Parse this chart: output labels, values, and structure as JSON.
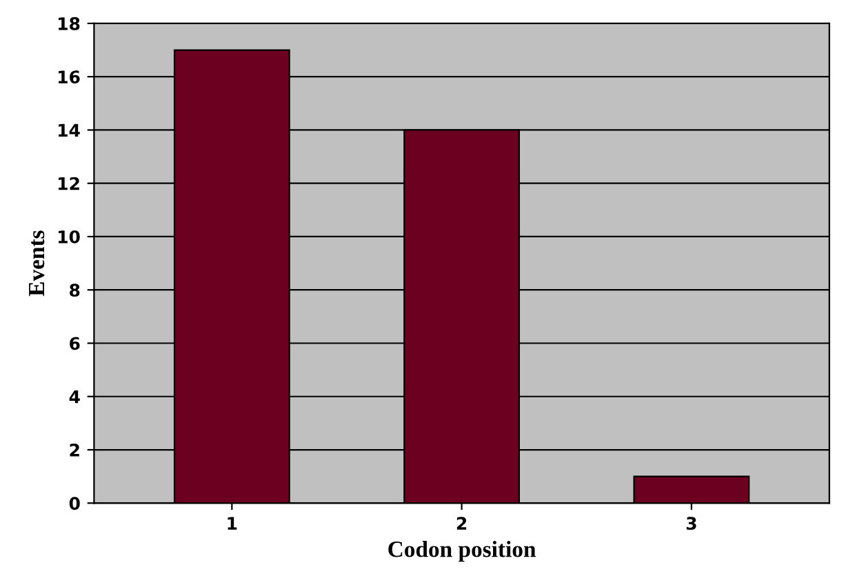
{
  "chart_data": {
    "type": "bar",
    "xlabel": "Codon position",
    "ylabel": "Events",
    "categories": [
      "1",
      "2",
      "3"
    ],
    "values": [
      17,
      14,
      1
    ],
    "color": "#6b0020",
    "ylim": [
      0,
      18
    ],
    "yticks": [
      0,
      2,
      4,
      6,
      8,
      10,
      12,
      14,
      16,
      18
    ],
    "grid": "y"
  }
}
